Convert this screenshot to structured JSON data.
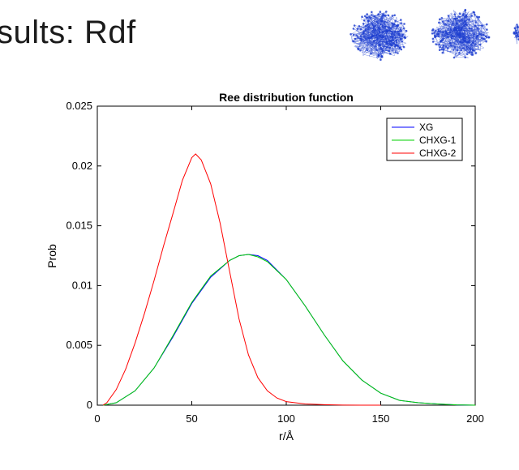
{
  "slide": {
    "title": "sults: Rdf"
  },
  "molecule_images": {
    "icon": "polymer-coil-render",
    "color": "#1f3fd0",
    "count": 3
  },
  "chart_data": {
    "type": "line",
    "title": "Ree distribution function",
    "xlabel": "r/Å",
    "ylabel": "Prob",
    "xlim": [
      0,
      200
    ],
    "ylim": [
      0,
      0.025
    ],
    "xticks": [
      0,
      50,
      100,
      150,
      200
    ],
    "yticks": [
      0,
      0.005,
      0.01,
      0.015,
      0.02,
      0.025
    ],
    "xtick_labels": [
      "0",
      "50",
      "100",
      "150",
      "200"
    ],
    "ytick_labels": [
      "0",
      "0.005",
      "0.01",
      "0.015",
      "0.02",
      "0.025"
    ],
    "grid": false,
    "legend_position": "top-right",
    "series": [
      {
        "name": "XG",
        "color": "#0000ff",
        "x": [
          3,
          10,
          20,
          30,
          40,
          50,
          60,
          70,
          75,
          80,
          85,
          90,
          100,
          110,
          120,
          130,
          140,
          150,
          160,
          170,
          180,
          190,
          200
        ],
        "y": [
          0,
          0.0002,
          0.0012,
          0.0031,
          0.0057,
          0.0085,
          0.0107,
          0.0121,
          0.0125,
          0.0126,
          0.0125,
          0.0121,
          0.0105,
          0.0083,
          0.0059,
          0.0037,
          0.0021,
          0.001,
          0.0004,
          0.0002,
          0.0001,
          3e-05,
          0
        ]
      },
      {
        "name": "CHXG-1",
        "color": "#00d000",
        "x": [
          3,
          10,
          20,
          30,
          40,
          50,
          60,
          70,
          75,
          80,
          85,
          90,
          100,
          110,
          120,
          130,
          140,
          150,
          160,
          170,
          180,
          190,
          200
        ],
        "y": [
          0,
          0.0002,
          0.0012,
          0.0031,
          0.0058,
          0.0086,
          0.0108,
          0.0121,
          0.0125,
          0.0126,
          0.0124,
          0.012,
          0.0105,
          0.0083,
          0.0059,
          0.0037,
          0.0021,
          0.001,
          0.0004,
          0.0002,
          0.0001,
          3e-05,
          0
        ]
      },
      {
        "name": "CHXG-2",
        "color": "#ff0000",
        "x": [
          3,
          5,
          10,
          15,
          20,
          25,
          30,
          35,
          40,
          45,
          50,
          52,
          55,
          60,
          65,
          70,
          75,
          80,
          85,
          90,
          95,
          100,
          110,
          120,
          130,
          140,
          150
        ],
        "y": [
          0,
          0.0002,
          0.0013,
          0.003,
          0.0052,
          0.0077,
          0.0104,
          0.0133,
          0.016,
          0.0188,
          0.0207,
          0.021,
          0.0205,
          0.0185,
          0.0152,
          0.0112,
          0.0072,
          0.0042,
          0.0023,
          0.0012,
          0.0006,
          0.0003,
          0.0001,
          4e-05,
          1e-05,
          0,
          0
        ]
      }
    ]
  }
}
